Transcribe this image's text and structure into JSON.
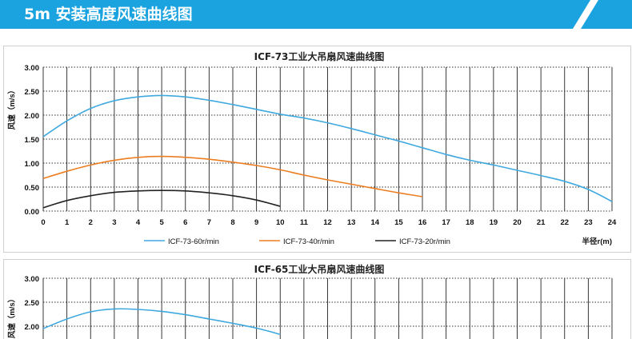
{
  "section": {
    "title": "5m 安装高度风速曲线图"
  },
  "colors": {
    "banner_blue": "#1ba3e0",
    "series_blue": "#3fa9df",
    "series_orange": "#ec7e22",
    "series_black": "#222222"
  },
  "chart_data": [
    {
      "type": "line",
      "title": "ICF-73工业大吊扇风速曲线图",
      "ylabel": "风速（m/s）",
      "xlabel": "半径r(m)",
      "xlim": [
        0,
        24
      ],
      "ylim": [
        0,
        3
      ],
      "x_ticks": [
        "0",
        "1",
        "2",
        "3",
        "4",
        "5",
        "6",
        "7",
        "8",
        "9",
        "10",
        "11",
        "12",
        "13",
        "14",
        "15",
        "16",
        "17",
        "18",
        "19",
        "20",
        "21",
        "22",
        "23",
        "24"
      ],
      "y_ticks": [
        "0.00",
        "0.50",
        "1.00",
        "1.50",
        "2.00",
        "2.50",
        "3.00"
      ],
      "grid": "on",
      "legend": "bottom",
      "series": [
        {
          "name": "ICF-73-60r/min",
          "color": "#3fa9df",
          "x": [
            0,
            1,
            2,
            3,
            4,
            5,
            6,
            7,
            8,
            9,
            10,
            11,
            12,
            13,
            14,
            15,
            16,
            17,
            18,
            19,
            20,
            21,
            22,
            23,
            24
          ],
          "y": [
            1.55,
            1.88,
            2.14,
            2.3,
            2.38,
            2.41,
            2.38,
            2.31,
            2.22,
            2.12,
            2.02,
            1.94,
            1.84,
            1.72,
            1.59,
            1.46,
            1.32,
            1.18,
            1.06,
            0.96,
            0.85,
            0.74,
            0.62,
            0.45,
            0.2
          ]
        },
        {
          "name": "ICF-73-40r/min",
          "color": "#ec7e22",
          "x": [
            0,
            1,
            2,
            3,
            4,
            5,
            6,
            7,
            8,
            9,
            10,
            11,
            12,
            13,
            14,
            15,
            16
          ],
          "y": [
            0.68,
            0.83,
            0.96,
            1.06,
            1.12,
            1.14,
            1.12,
            1.08,
            1.02,
            0.95,
            0.86,
            0.75,
            0.65,
            0.56,
            0.47,
            0.38,
            0.3
          ]
        },
        {
          "name": "ICF-73-20r/min",
          "color": "#222222",
          "x": [
            0,
            1,
            2,
            3,
            4,
            5,
            6,
            7,
            8,
            9,
            10
          ],
          "y": [
            0.07,
            0.22,
            0.32,
            0.39,
            0.42,
            0.43,
            0.42,
            0.38,
            0.32,
            0.23,
            0.1
          ]
        }
      ]
    },
    {
      "type": "line",
      "title": "ICF-65工业大吊扇风速曲线图",
      "ylabel": "风速（m/s）",
      "ylim": [
        0,
        3
      ],
      "xlim": [
        0,
        24
      ],
      "y_ticks": [
        "3.00",
        "2.50",
        "2.00"
      ],
      "grid": "on",
      "series": [
        {
          "color": "#3fa9df",
          "x": [
            0,
            1,
            2,
            3,
            4,
            5,
            6,
            7,
            8,
            9,
            10
          ],
          "y": [
            1.95,
            2.15,
            2.3,
            2.36,
            2.35,
            2.31,
            2.24,
            2.15,
            2.06,
            1.96,
            1.83
          ]
        }
      ]
    }
  ]
}
